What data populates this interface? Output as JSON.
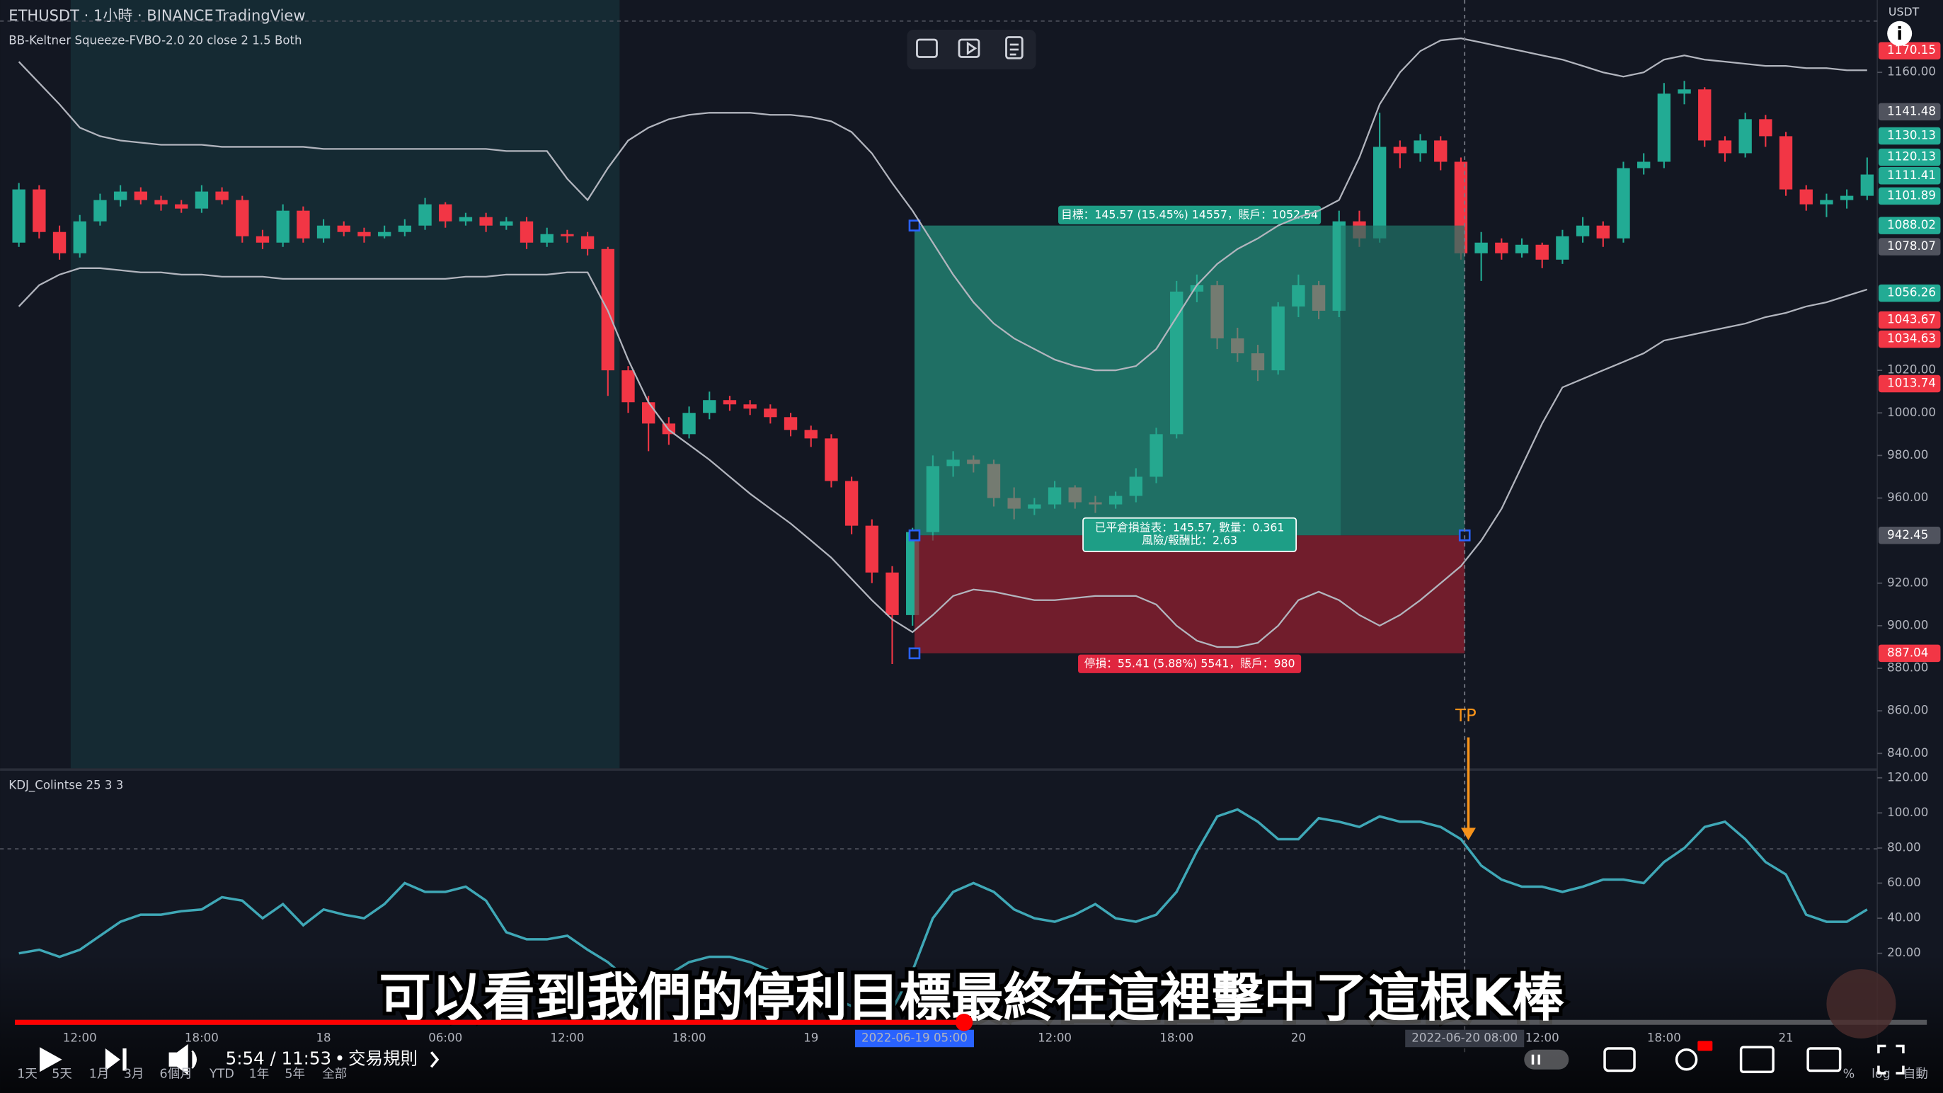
{
  "header": {
    "source": "TradingView",
    "currency": "USDT",
    "axis_modes": [
      "%",
      "log",
      "自動"
    ]
  },
  "video": {
    "caption": "可以看到我們的停利目標最終在這裡擊中了這根K棒",
    "time": "5:54 / 11:53",
    "chapter": "交易規則",
    "timeframes": [
      "1天",
      "5天",
      "1月",
      "3月",
      "6個月",
      "YTD",
      "1年",
      "5年",
      "全部"
    ]
  },
  "chart_data": [
    {
      "type": "candlestick",
      "title": "ETHUSDT · 1小時 · BINANCE",
      "indicator": "BB-Keltner Squeeze-FVBO-2.0 20 close 2 1.5 Both",
      "categories": [
        null,
        null,
        null,
        "12:00",
        null,
        null,
        null,
        null,
        null,
        "18:00",
        null,
        null,
        null,
        null,
        null,
        "18",
        null,
        null,
        null,
        null,
        null,
        "06:00",
        null,
        null,
        null,
        null,
        null,
        "12:00",
        null,
        null,
        null,
        null,
        null,
        "18:00",
        null,
        null,
        null,
        null,
        null,
        "19",
        null,
        null,
        null,
        null,
        null,
        null,
        null,
        null,
        null,
        null,
        null,
        "12:00",
        null,
        null,
        null,
        null,
        null,
        "18:00",
        null,
        null,
        null,
        null,
        null,
        "20",
        null,
        null,
        null,
        null,
        null,
        null,
        null,
        null,
        null,
        null,
        null,
        "12:00",
        null,
        null,
        null,
        null,
        null,
        "18:00",
        null,
        null,
        null,
        null,
        null,
        "21",
        null,
        null,
        null,
        null
      ],
      "highlighted_times": [
        "2022-06-19 05:00",
        "2022-06-20 08:00"
      ],
      "up_color": "#22ab94",
      "down_color": "#f23645",
      "open": [
        1080,
        1105,
        1085,
        1075,
        1090,
        1100,
        1104,
        1100,
        1098,
        1096,
        1104,
        1100,
        1083,
        1080,
        1095,
        1082,
        1088,
        1085,
        1083,
        1085,
        1088,
        1098,
        1090,
        1092,
        1088,
        1090,
        1080,
        1084,
        1083,
        1077,
        1020,
        1005,
        995,
        990,
        1000,
        1006,
        1004,
        1002,
        998,
        992,
        988,
        968,
        947,
        925,
        905,
        944,
        975,
        978,
        976,
        960,
        955,
        957,
        965,
        958,
        957,
        961,
        970,
        990,
        1057,
        1060,
        1035,
        1028,
        1020,
        1050,
        1060,
        1048,
        1090,
        1082,
        1125,
        1122,
        1128,
        1118,
        1075,
        1080,
        1075,
        1079,
        1072,
        1083,
        1088,
        1082,
        1115,
        1118,
        1150,
        1152,
        1128,
        1122,
        1138,
        1130,
        1105,
        1098,
        1100,
        1102
      ],
      "high": [
        1108,
        1107,
        1088,
        1093,
        1103,
        1107,
        1106,
        1102,
        1100,
        1107,
        1106,
        1102,
        1086,
        1098,
        1097,
        1091,
        1090,
        1087,
        1088,
        1091,
        1101,
        1099,
        1094,
        1094,
        1092,
        1092,
        1087,
        1086,
        1085,
        1078,
        1022,
        1008,
        998,
        1003,
        1010,
        1008,
        1006,
        1004,
        1000,
        994,
        990,
        970,
        950,
        928,
        946,
        980,
        982,
        980,
        978,
        965,
        960,
        968,
        966,
        961,
        963,
        974,
        993,
        1062,
        1065,
        1062,
        1040,
        1032,
        1052,
        1065,
        1062,
        1095,
        1095,
        1141,
        1128,
        1131,
        1130,
        1120,
        1085,
        1082,
        1082,
        1080,
        1086,
        1092,
        1090,
        1118,
        1122,
        1155,
        1156,
        1153,
        1130,
        1141,
        1140,
        1132,
        1107,
        1103,
        1105,
        1120
      ],
      "low": [
        1078,
        1082,
        1072,
        1073,
        1088,
        1097,
        1098,
        1095,
        1094,
        1094,
        1098,
        1080,
        1077,
        1078,
        1080,
        1080,
        1083,
        1080,
        1082,
        1083,
        1086,
        1087,
        1088,
        1085,
        1086,
        1077,
        1078,
        1080,
        1074,
        1008,
        1000,
        982,
        985,
        988,
        997,
        1001,
        999,
        995,
        989,
        984,
        965,
        943,
        920,
        882,
        900,
        940,
        970,
        972,
        956,
        950,
        952,
        955,
        955,
        953,
        955,
        958,
        967,
        988,
        1052,
        1030,
        1024,
        1015,
        1018,
        1045,
        1044,
        1045,
        1078,
        1080,
        1115,
        1118,
        1114,
        1072,
        1062,
        1072,
        1073,
        1068,
        1070,
        1080,
        1078,
        1080,
        1112,
        1115,
        1145,
        1125,
        1118,
        1120,
        1125,
        1102,
        1095,
        1092,
        1096,
        1100
      ],
      "close": [
        1105,
        1085,
        1075,
        1090,
        1100,
        1104,
        1100,
        1098,
        1096,
        1104,
        1100,
        1083,
        1080,
        1095,
        1082,
        1088,
        1085,
        1083,
        1085,
        1088,
        1098,
        1090,
        1092,
        1088,
        1090,
        1080,
        1084,
        1083,
        1077,
        1020,
        1005,
        995,
        990,
        1000,
        1006,
        1004,
        1002,
        998,
        992,
        988,
        968,
        947,
        925,
        905,
        944,
        975,
        978,
        976,
        960,
        955,
        957,
        965,
        958,
        957,
        961,
        970,
        990,
        1057,
        1060,
        1035,
        1028,
        1020,
        1050,
        1060,
        1048,
        1090,
        1082,
        1125,
        1122,
        1128,
        1118,
        1075,
        1080,
        1075,
        1079,
        1072,
        1083,
        1088,
        1082,
        1115,
        1118,
        1150,
        1152,
        1128,
        1122,
        1138,
        1130,
        1105,
        1098,
        1100,
        1102,
        1112
      ],
      "series": [
        {
          "color": "#b2b5be",
          "values": [
            1165,
            1155,
            1145,
            1134,
            1130,
            1128,
            1127,
            1126,
            1126,
            1126,
            1125,
            1125,
            1125,
            1125,
            1125,
            1124,
            1124,
            1124,
            1124,
            1124,
            1124,
            1124,
            1124,
            1124,
            1123,
            1123,
            1123,
            1110,
            1100,
            1115,
            1128,
            1134,
            1138,
            1140,
            1141,
            1141,
            1141,
            1140,
            1140,
            1139,
            1137,
            1132,
            1122,
            1108,
            1095,
            1080,
            1065,
            1052,
            1042,
            1035,
            1030,
            1025,
            1022,
            1020,
            1020,
            1022,
            1030,
            1045,
            1060,
            1070,
            1077,
            1082,
            1088,
            1092,
            1095,
            1100,
            1120,
            1145,
            1160,
            1170,
            1175,
            1176,
            1174,
            1172,
            1170,
            1168,
            1166,
            1163,
            1160,
            1158,
            1160,
            1166,
            1168,
            1166,
            1165,
            1164,
            1163,
            1163,
            1162,
            1162,
            1161,
            1161
          ]
        },
        {
          "color": "#b2b5be",
          "values": [
            1050,
            1060,
            1065,
            1068,
            1068,
            1067,
            1066,
            1066,
            1065,
            1065,
            1064,
            1064,
            1064,
            1063,
            1063,
            1063,
            1063,
            1063,
            1063,
            1063,
            1063,
            1063,
            1064,
            1064,
            1065,
            1065,
            1065,
            1066,
            1066,
            1048,
            1025,
            1005,
            992,
            985,
            978,
            970,
            962,
            955,
            948,
            940,
            932,
            922,
            912,
            903,
            897,
            905,
            914,
            917,
            916,
            914,
            912,
            912,
            913,
            914,
            914,
            914,
            910,
            900,
            893,
            890,
            890,
            892,
            900,
            912,
            916,
            912,
            905,
            900,
            905,
            912,
            920,
            928,
            940,
            955,
            975,
            995,
            1012,
            1016,
            1020,
            1024,
            1028,
            1034,
            1036,
            1038,
            1040,
            1042,
            1045,
            1047,
            1050,
            1052,
            1055,
            1058
          ]
        }
      ],
      "ylim": [
        833,
        1194
      ],
      "yticks": [
        {
          "value": 1160,
          "label": "1160.00"
        },
        {
          "value": 1020,
          "label": "1020.00"
        },
        {
          "value": 1000,
          "label": "1000.00"
        },
        {
          "value": 980,
          "label": "980.00"
        },
        {
          "value": 960,
          "label": "960.00"
        },
        {
          "value": 920,
          "label": "920.00"
        },
        {
          "value": 900,
          "label": "900.00"
        },
        {
          "value": 880,
          "label": "880.00"
        },
        {
          "value": 860,
          "label": "860.00"
        },
        {
          "value": 840,
          "label": "840.00"
        }
      ],
      "price_tags": [
        {
          "value": 1170.15,
          "color": "#f23645"
        },
        {
          "value": 1141.48,
          "color": "#50535e"
        },
        {
          "value": 1130.13,
          "color": "#22ab94"
        },
        {
          "value": 1120.13,
          "color": "#22ab94"
        },
        {
          "value": 1111.41,
          "color": "#22ab94"
        },
        {
          "value": 1101.89,
          "color": "#22ab94"
        },
        {
          "value": 1088.02,
          "color": "#22ab94"
        },
        {
          "value": 1078.07,
          "color": "#50535e"
        },
        {
          "value": 1056.26,
          "color": "#22ab94"
        },
        {
          "value": 1043.67,
          "color": "#f23645"
        },
        {
          "value": 1034.63,
          "color": "#f23645"
        },
        {
          "value": 1013.74,
          "color": "#f23645"
        },
        {
          "value": 942.45,
          "color": "#50535e"
        },
        {
          "value": 887.04,
          "color": "#f23645"
        }
      ],
      "position": {
        "target": 1088.02,
        "entry": 942.45,
        "stop": 887.04,
        "target_label": "目標：145.57 (15.45%) 14557，賬戶：1052.54",
        "result_label": "已平倉損益表：145.57, 數量：0.361",
        "ratio_label": "風險/報酬比：2.63",
        "stop_label": "停損：55.41 (5.88%) 5541，賬戶：980"
      },
      "annotation": "TP"
    },
    {
      "type": "line",
      "title": "KDJ_Colintse 25 3 3",
      "series": [
        {
          "color": "#3fa8b7",
          "values": [
            20,
            22,
            18,
            22,
            30,
            38,
            42,
            42,
            44,
            45,
            52,
            50,
            40,
            48,
            36,
            45,
            42,
            40,
            48,
            60,
            55,
            55,
            58,
            50,
            32,
            28,
            28,
            30,
            22,
            15,
            5,
            0,
            8,
            15,
            18,
            18,
            15,
            10,
            5,
            0,
            -5,
            -10,
            -15,
            -12,
            10,
            40,
            55,
            60,
            55,
            45,
            40,
            38,
            42,
            48,
            40,
            38,
            42,
            55,
            78,
            98,
            102,
            95,
            85,
            85,
            97,
            95,
            92,
            98,
            95,
            95,
            92,
            85,
            70,
            62,
            58,
            58,
            55,
            58,
            62,
            62,
            60,
            72,
            80,
            92,
            95,
            85,
            72,
            65,
            42,
            38,
            38,
            45
          ]
        }
      ],
      "ylim": [
        -37,
        124
      ],
      "yticks": [
        {
          "value": 120,
          "label": "120.00"
        },
        {
          "value": 100,
          "label": "100.00"
        },
        {
          "value": 80,
          "label": "80.00"
        },
        {
          "value": 60,
          "label": "60.00"
        },
        {
          "value": 40,
          "label": "40.00"
        },
        {
          "value": 20,
          "label": "20.00"
        }
      ]
    }
  ]
}
